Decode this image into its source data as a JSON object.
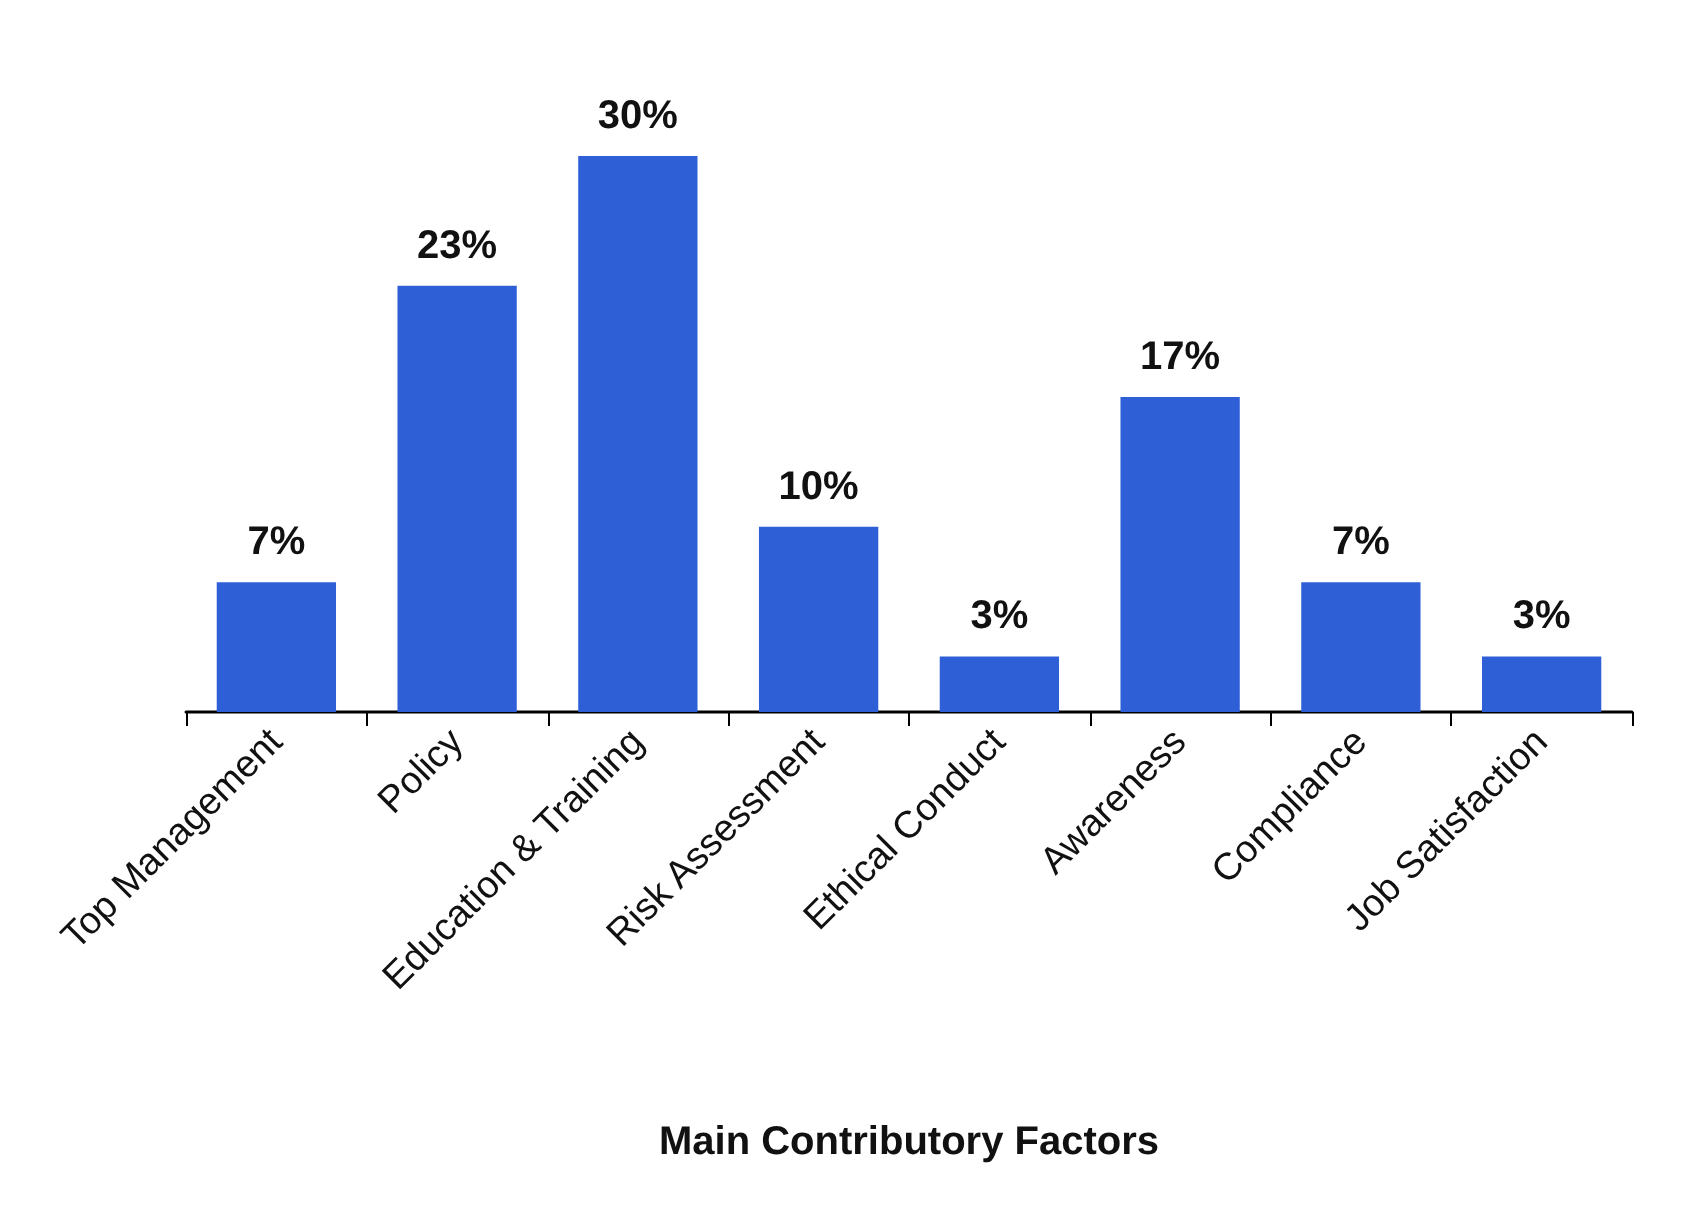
{
  "chart_data": {
    "type": "bar",
    "xlabel": "Main Contributory Factors",
    "categories": [
      "Top Management",
      "Policy",
      "Education & Training",
      "Risk Assessment",
      "Ethical Conduct",
      "Awareness",
      "Compliance",
      "Job Satisfaction"
    ],
    "values": [
      7,
      23,
      30,
      10,
      3,
      17,
      7,
      3
    ],
    "value_labels": [
      "7%",
      "23%",
      "30%",
      "10%",
      "3%",
      "17%",
      "7%",
      "3%"
    ],
    "color": "#2e5fd6",
    "grid": false
  }
}
